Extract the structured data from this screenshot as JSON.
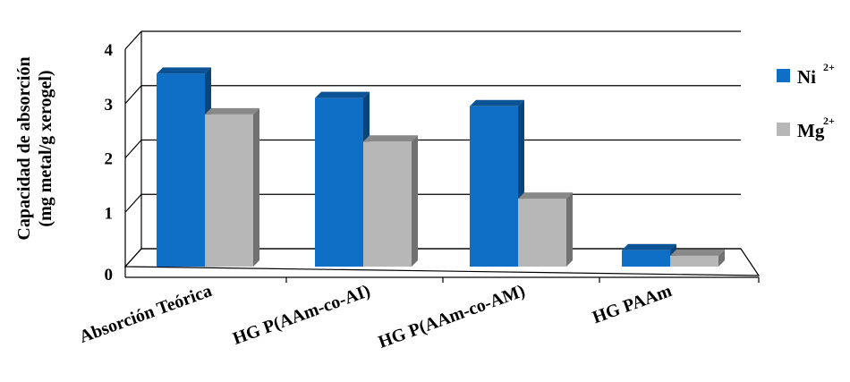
{
  "chart_data": {
    "type": "bar",
    "style": "3d-clustered-column",
    "categories": [
      "Absorción Teórica",
      "HG P(AAm-co-AI)",
      "HG P(AAm-co-AM)",
      "HG PAAm"
    ],
    "series": [
      {
        "name": "Ni",
        "superscript": "2+",
        "color": "#0F6FC6",
        "values": [
          3.55,
          3.1,
          2.95,
          0.3
        ]
      },
      {
        "name": "Mg",
        "superscript": "2+",
        "color": "#B7B7B7",
        "values": [
          2.8,
          2.3,
          1.25,
          0.2
        ]
      }
    ],
    "ylim": [
      0,
      4
    ],
    "yticks": [
      "0",
      "1",
      "2",
      "3",
      "4"
    ],
    "ylabel_line1": "Capacidad de absorción",
    "ylabel_line2": "(mg metal/g xerogel)",
    "xlabel": "",
    "title": "",
    "grid": true,
    "legend_position": "right"
  }
}
